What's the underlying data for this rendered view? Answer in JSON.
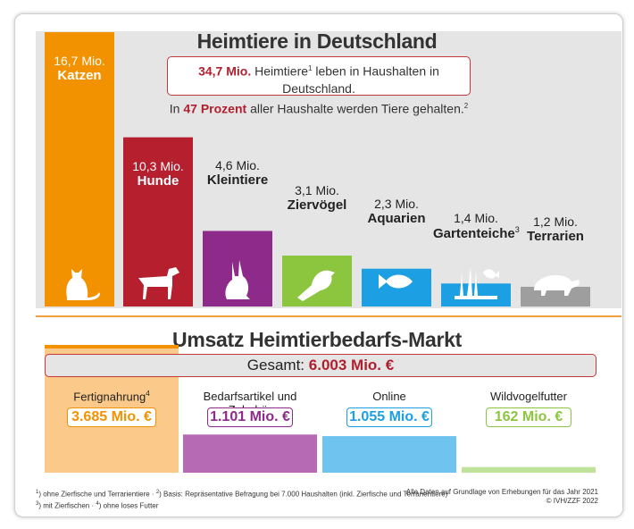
{
  "title": "Heimtiere in Deutschland",
  "callout": {
    "line1_value": "34,7 Mio.",
    "line1_text": "Heimtiere",
    "line1_sup": "1",
    "line1_rest": "leben in Haushalten in Deutschland.",
    "line2_pre": "In",
    "line2_value": "47 Prozent",
    "line2_text": "aller Haushalte werden Tiere gehalten.",
    "line2_sup": "2"
  },
  "chart_data": [
    {
      "type": "bar",
      "title": "Heimtiere in Deutschland",
      "unit": "Mio.",
      "categories": [
        "Katzen",
        "Hunde",
        "Kleintiere",
        "Ziervögel",
        "Aquarien",
        "Gartenteiche",
        "Terrarien"
      ],
      "values": [
        16.7,
        10.3,
        4.6,
        3.1,
        2.3,
        1.4,
        1.2
      ],
      "value_labels": [
        "16,7 Mio.",
        "10,3 Mio.",
        "4,6 Mio.",
        "3,1 Mio.",
        "2,3 Mio.",
        "1,4 Mio.",
        "1,2 Mio."
      ],
      "superscripts": [
        "",
        "",
        "",
        "",
        "",
        "3",
        ""
      ],
      "colors": [
        "#f39200",
        "#b51f2e",
        "#8e2a8a",
        "#8cc63f",
        "#1c9fe3",
        "#1c9fe3",
        "#9e9e9e"
      ],
      "icons": [
        "cat-icon",
        "dog-icon",
        "rabbit-icon",
        "parrot-icon",
        "fish-icon",
        "goldfish-pond-icon",
        "turtle-icon"
      ]
    },
    {
      "type": "bar",
      "title": "Umsatz Heimtierbedarfs-Markt",
      "total_label": "Gesamt:",
      "total_value": "6.003 Mio. €",
      "categories": [
        "Fertignahrung",
        "Bedarfsartikel und Zubehör",
        "Online",
        "Wildvogelfutter"
      ],
      "values": [
        3685,
        1101,
        1055,
        162
      ],
      "value_labels": [
        "3.685 Mio. €",
        "1.101 Mio. €",
        "1.055 Mio. €",
        "162 Mio. €"
      ],
      "superscripts": [
        "4",
        "",
        "",
        ""
      ],
      "colors": [
        "#f39200",
        "#8e2a8a",
        "#1c9fe3",
        "#8cc63f"
      ]
    }
  ],
  "footnotes": {
    "left_line1_sup1": "1",
    "left_line1_a": ") ohne Zierfische und Terrarientiere ·",
    "left_line1_sup2": "2",
    "left_line1_b": ") Basis: Repräsentative Befragung bei 7.000 Haushalten (inkl. Zierfische und Terrarientiere)",
    "left_line2_sup3": "3",
    "left_line2_a": ") mit Zierfischen ·",
    "left_line2_sup4": "4",
    "left_line2_b": ") ohne loses Futter",
    "right_line1": "Alle Daten auf Grundlage von Erhebungen für das Jahr 2021",
    "right_line2": "© IVH/ZZF 2022"
  }
}
